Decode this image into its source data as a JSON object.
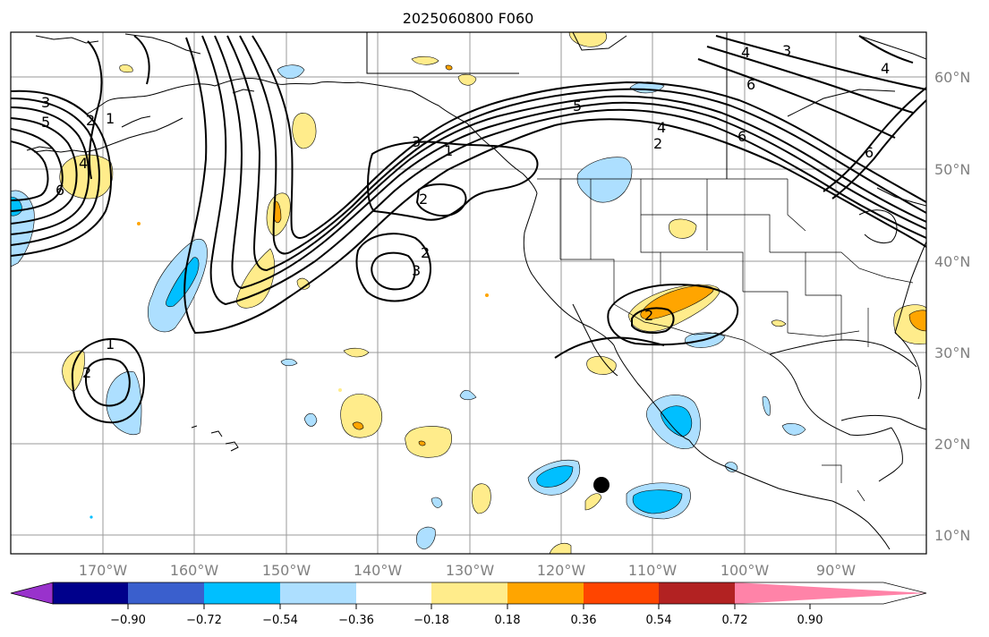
{
  "title": "2025060800 F060",
  "lat_labels": [
    "60°N",
    "50°N",
    "40°N",
    "30°N",
    "20°N",
    "10°N"
  ],
  "lon_labels": [
    "170°W",
    "160°W",
    "150°W",
    "140°W",
    "130°W",
    "120°W",
    "110°W",
    "100°W",
    "90°W"
  ],
  "colorbar": {
    "colors": [
      "#9932CC",
      "#00008B",
      "#3A5FCD",
      "#00BFFF",
      "#ADDFFF",
      "#FFFFFF",
      "#FFEC8B",
      "#FFA500",
      "#FF4500",
      "#B22222",
      "#FF83A8"
    ],
    "labels": [
      "−0.90",
      "−0.72",
      "−0.54",
      "−0.36",
      "−0.18",
      "0.18",
      "0.36",
      "0.54",
      "0.72",
      "0.90"
    ]
  },
  "contour_labels": {
    "a": "3",
    "b": "5",
    "c": "2",
    "d": "1",
    "e": "4",
    "f": "6",
    "g": "3",
    "h": "1",
    "i": "5",
    "j": "4",
    "k": "2",
    "l": "6",
    "m": "4",
    "n": "3",
    "o": "4",
    "p": "6",
    "q": "6",
    "r": "2",
    "s": "2",
    "t": "3",
    "u": "2",
    "v": "1",
    "w": "2"
  }
}
